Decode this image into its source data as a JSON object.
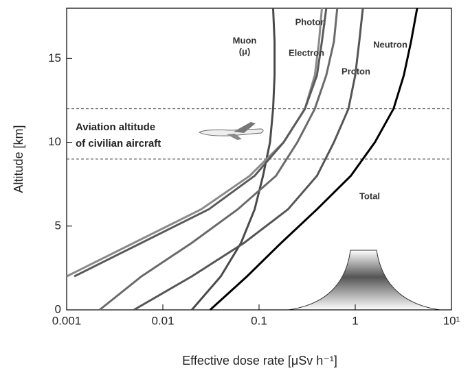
{
  "chart_data": {
    "type": "line",
    "xlabel": "Effective dose rate  [μSv h⁻¹]",
    "ylabel": "Altitude [km]",
    "xlog": true,
    "xlim": [
      0.001,
      10
    ],
    "ylim": [
      0,
      18
    ],
    "xticks": [
      0.001,
      0.01,
      0.1,
      1,
      {
        "value": 10,
        "label": "10¹"
      }
    ],
    "yticks": [
      0,
      5,
      10,
      15
    ],
    "band": [
      9,
      12
    ],
    "annotation": [
      "Aviation altitude",
      "of civilian aircraft"
    ],
    "series": [
      {
        "name": "Muon",
        "symbol": "(μ)",
        "color": "#4a4a4a",
        "x": [
          0.02,
          0.04,
          0.065,
          0.09,
          0.11,
          0.13,
          0.14,
          0.145,
          0.145,
          0.14
        ],
        "y": [
          0,
          2,
          4,
          6,
          8,
          10,
          12,
          14,
          16,
          18
        ]
      },
      {
        "name": "Photon",
        "color": "#8a8a8a",
        "x": [
          0.001,
          0.005,
          0.025,
          0.08,
          0.18,
          0.3,
          0.38,
          0.42,
          0.45
        ],
        "y": [
          2,
          4,
          6,
          8,
          10,
          12,
          14,
          16,
          18
        ]
      },
      {
        "name": "Electron",
        "color": "#5a5a5a",
        "x": [
          0.0012,
          0.006,
          0.03,
          0.09,
          0.18,
          0.3,
          0.4,
          0.45,
          0.5
        ],
        "y": [
          2,
          4,
          6,
          8,
          10,
          12,
          14,
          16,
          18
        ]
      },
      {
        "name": "Proton",
        "color": "#6a6a6a",
        "x": [
          0.0022,
          0.006,
          0.02,
          0.06,
          0.15,
          0.25,
          0.38,
          0.5,
          0.6,
          0.65
        ],
        "y": [
          0,
          2,
          4,
          6,
          8,
          10,
          12,
          14,
          16,
          18
        ]
      },
      {
        "name": "Neutron",
        "color": "#555555",
        "x": [
          0.005,
          0.02,
          0.07,
          0.2,
          0.4,
          0.6,
          0.85,
          1.0,
          1.1,
          1.2
        ],
        "y": [
          0,
          2,
          4,
          6,
          8,
          10,
          12,
          14,
          16,
          18
        ]
      },
      {
        "name": "Total",
        "color": "#000000",
        "x": [
          0.031,
          0.075,
          0.17,
          0.4,
          0.9,
          1.6,
          2.5,
          3.2,
          3.8,
          4.4
        ],
        "y": [
          0,
          2,
          4,
          6,
          8,
          10,
          12,
          14,
          16,
          18
        ]
      }
    ]
  }
}
